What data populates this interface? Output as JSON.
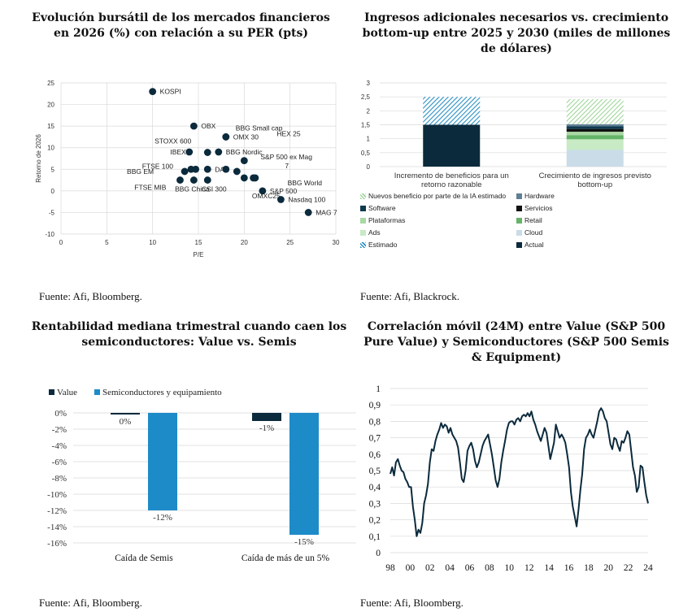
{
  "panels": {
    "scatter": {
      "title_line1": "Evolución bursátil de los mercados financieros",
      "title_line2": "en 2026 (%) con relación a su PER (pts)",
      "source": "Fuente: Afi, Bloomberg."
    },
    "stacked": {
      "title_line1": "Ingresos adicionales necesarios vs. crecimiento",
      "title_line2": "bottom-up entre 2025 y 2030 (miles de millones",
      "title_line3": "de dólares)",
      "source": "Fuente: Afi, Blackrock."
    },
    "bars": {
      "title_line1": "Rentabilidad mediana trimestral cuando caen los",
      "title_line2": "semiconductores: Value vs. Semis",
      "source": "Fuente: Afi, Bloomberg."
    },
    "line": {
      "title_line1": "Correlación móvil (24M) entre Value (S&P 500",
      "title_line2": "Pure Value) y Semiconductores (S&P 500 Semis",
      "title_line3": "& Equipment)",
      "source": "Fuente: Afi, Bloomberg."
    }
  },
  "chart_data": [
    {
      "type": "scatter",
      "xlabel": "P/E",
      "ylabel": "Retorno de 2026",
      "xlim": [
        0,
        30
      ],
      "ylim": [
        -10,
        25
      ],
      "xticks": [
        0,
        5,
        10,
        15,
        20,
        25,
        30
      ],
      "yticks": [
        -10,
        -5,
        0,
        5,
        10,
        15,
        20,
        25
      ],
      "grid": true,
      "color": "#0b2a3c",
      "points": [
        {
          "label": "KOSPI",
          "x": 10.0,
          "y": 23.0
        },
        {
          "label": "OBX",
          "x": 14.5,
          "y": 15.0
        },
        {
          "label": "BBG Small cap",
          "x": 18.0,
          "y": 12.5
        },
        {
          "label": "STOXX 600",
          "x": 16.0,
          "y": 8.9
        },
        {
          "label": "OMX 30",
          "x": 18.0,
          "y": 12.5
        },
        {
          "label": "HEX 25",
          "x": 20.0,
          "y": 7.0
        },
        {
          "label": "BBG EM",
          "x": 13.5,
          "y": 4.5
        },
        {
          "label": "IBEX",
          "x": 14.0,
          "y": 9.0
        },
        {
          "label": "BBG Nordic",
          "x": 17.2,
          "y": 9.0
        },
        {
          "label": "S&P 500 ex Mag 7",
          "x": 19.2,
          "y": 4.5
        },
        {
          "label": "FTSE 100",
          "x": 14.2,
          "y": 5.0
        },
        {
          "label": "BBG World",
          "x": 21.0,
          "y": 3.0
        },
        {
          "label": "FTSE MIB",
          "x": 13.0,
          "y": 2.5
        },
        {
          "label": "DAX",
          "x": 16.0,
          "y": 5.0
        },
        {
          "label": "S&P 500",
          "x": 22.0,
          "y": 0.0
        },
        {
          "label": "BBG China",
          "x": 14.5,
          "y": 2.5
        },
        {
          "label": "CSI 300",
          "x": 16.0,
          "y": 2.5
        },
        {
          "label": "OMXC25",
          "x": 20.0,
          "y": 3.0
        },
        {
          "label": "Nasdaq 100",
          "x": 24.0,
          "y": -2.0
        },
        {
          "label": "MAG 7",
          "x": 27.0,
          "y": -5.0
        },
        {
          "label": "",
          "x": 14.7,
          "y": 5.0
        },
        {
          "label": "",
          "x": 18.0,
          "y": 5.0
        },
        {
          "label": "",
          "x": 21.2,
          "y": 3.0
        }
      ]
    },
    {
      "type": "bar",
      "stacked": true,
      "ylim": [
        0,
        3
      ],
      "yticks": [
        "0",
        "0,5",
        "1",
        "1,5",
        "2",
        "2,5",
        "3"
      ],
      "categories": [
        "Incremento de beneficios para un retorno razonable",
        "Crecimiento de ingresos previsto bottom-up"
      ],
      "category_lines": [
        [
          "Incremento de beneficios para un",
          "retorno razonable"
        ],
        [
          "Crecimiento de ingresos previsto",
          "bottom-up"
        ]
      ],
      "grid": true,
      "series": [
        {
          "name": "Actual",
          "color": "#0b2a3c",
          "pattern": "solid",
          "values": [
            1.5,
            0
          ]
        },
        {
          "name": "Estimado",
          "color": "#2a8fc4",
          "pattern": "hatch",
          "values": [
            1.0,
            0
          ]
        },
        {
          "name": "Cloud",
          "color": "#c9dce8",
          "pattern": "solid",
          "values": [
            0,
            0.6
          ]
        },
        {
          "name": "Ads",
          "color": "#c8eac5",
          "pattern": "solid",
          "values": [
            0,
            0.38
          ]
        },
        {
          "name": "Retail",
          "color": "#64b368",
          "pattern": "solid",
          "values": [
            0,
            0.15
          ]
        },
        {
          "name": "Plataformas",
          "color": "#a9d8a4",
          "pattern": "solid",
          "values": [
            0,
            0.12
          ]
        },
        {
          "name": "Servicios",
          "color": "#111111",
          "pattern": "solid",
          "values": [
            0,
            0.1
          ]
        },
        {
          "name": "Software",
          "color": "#0e3a50",
          "pattern": "solid",
          "values": [
            0,
            0.1
          ]
        },
        {
          "name": "Hardware",
          "color": "#5f7f95",
          "pattern": "solid",
          "values": [
            0,
            0.07
          ]
        },
        {
          "name": "Nuevos beneficio por parte de la IA estimado",
          "color": "#9fd69a",
          "pattern": "hatch",
          "values": [
            0,
            0.9
          ]
        }
      ],
      "legend": [
        "Nuevos beneficio por parte de la IA estimado",
        "Hardware",
        "Software",
        "Servicios",
        "Plataformas",
        "Retail",
        "Ads",
        "Cloud",
        "Estimado",
        "Actual"
      ]
    },
    {
      "type": "bar",
      "categories": [
        "Caída de Semis",
        "Caída de más de un 5%"
      ],
      "ylim": [
        -16,
        0
      ],
      "yticks": [
        "0%",
        "-2%",
        "-4%",
        "-6%",
        "-8%",
        "-10%",
        "-12%",
        "-14%",
        "-16%"
      ],
      "grid": true,
      "legend_position": "top-left",
      "series": [
        {
          "name": "Value",
          "color": "#0b2a3c",
          "values": [
            -0.2,
            -1.0
          ],
          "data_labels": [
            "0%",
            "-1%"
          ]
        },
        {
          "name": "Semiconductores y equipamiento",
          "color": "#1e8bc9",
          "values": [
            -12.0,
            -15.0
          ],
          "data_labels": [
            "-12%",
            "-15%"
          ]
        }
      ]
    },
    {
      "type": "line",
      "ylim": [
        0,
        1
      ],
      "yticks": [
        "0",
        "0,1",
        "0,2",
        "0,3",
        "0,4",
        "0,5",
        "0,6",
        "0,7",
        "0,8",
        "0,9",
        "1"
      ],
      "xticks": [
        "98",
        "00",
        "02",
        "04",
        "06",
        "08",
        "10",
        "12",
        "14",
        "16",
        "18",
        "20",
        "22",
        "24"
      ],
      "grid": true,
      "color": "#0b2a3c",
      "series": [
        {
          "values": [
            0.48,
            0.52,
            0.47,
            0.55,
            0.57,
            0.53,
            0.5,
            0.49,
            0.45,
            0.43,
            0.4,
            0.4,
            0.28,
            0.2,
            0.1,
            0.14,
            0.12,
            0.18,
            0.3,
            0.35,
            0.42,
            0.55,
            0.63,
            0.62,
            0.68,
            0.72,
            0.75,
            0.79,
            0.76,
            0.78,
            0.77,
            0.73,
            0.76,
            0.72,
            0.7,
            0.68,
            0.64,
            0.55,
            0.45,
            0.43,
            0.5,
            0.62,
            0.65,
            0.67,
            0.63,
            0.56,
            0.52,
            0.55,
            0.6,
            0.65,
            0.68,
            0.7,
            0.72,
            0.66,
            0.6,
            0.52,
            0.44,
            0.4,
            0.45,
            0.55,
            0.62,
            0.68,
            0.75,
            0.79,
            0.8,
            0.8,
            0.78,
            0.81,
            0.82,
            0.8,
            0.83,
            0.84,
            0.83,
            0.85,
            0.83,
            0.86,
            0.81,
            0.78,
            0.74,
            0.71,
            0.68,
            0.72,
            0.76,
            0.73,
            0.65,
            0.57,
            0.62,
            0.67,
            0.78,
            0.74,
            0.7,
            0.72,
            0.7,
            0.67,
            0.6,
            0.52,
            0.37,
            0.28,
            0.22,
            0.16,
            0.26,
            0.38,
            0.48,
            0.63,
            0.7,
            0.72,
            0.75,
            0.72,
            0.7,
            0.75,
            0.8,
            0.86,
            0.88,
            0.86,
            0.82,
            0.8,
            0.73,
            0.66,
            0.63,
            0.7,
            0.69,
            0.65,
            0.62,
            0.68,
            0.67,
            0.7,
            0.74,
            0.72,
            0.62,
            0.52,
            0.47,
            0.37,
            0.4,
            0.53,
            0.52,
            0.43,
            0.35,
            0.3
          ]
        }
      ]
    }
  ]
}
